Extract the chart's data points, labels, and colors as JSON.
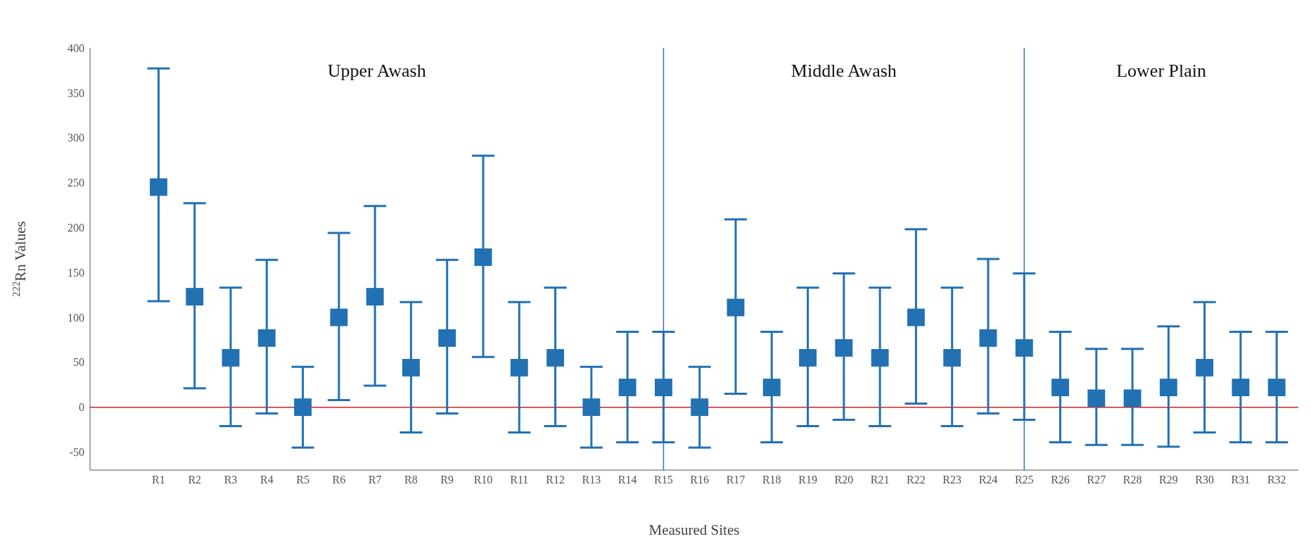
{
  "chart_data": {
    "type": "scatter",
    "xlabel": "Measured Sites",
    "ylabel": "$^{222}$Rn Values",
    "categories": [
      "R1",
      "R2",
      "R3",
      "R4",
      "R5",
      "R6",
      "R7",
      "R8",
      "R9",
      "R10",
      "R11",
      "R12",
      "R13",
      "R14",
      "R15",
      "R16",
      "R17",
      "R18",
      "R19",
      "R20",
      "R21",
      "R22",
      "R23",
      "R24",
      "R25",
      "R26",
      "R27",
      "R28",
      "R29",
      "R30",
      "R31",
      "R32"
    ],
    "series": [
      {
        "color": "#2271b3",
        "values": [
          245,
          123,
          55,
          77,
          0,
          100,
          123,
          44,
          77,
          167,
          44,
          55,
          0,
          22,
          22,
          0,
          111,
          22,
          55,
          66,
          55,
          100,
          55,
          77,
          66,
          22,
          10,
          10,
          22,
          44,
          22,
          22
        ],
        "errors": [
          [
            118,
            377
          ],
          [
            21,
            227
          ],
          [
            -21,
            133
          ],
          [
            -7,
            164
          ],
          [
            -45,
            45
          ],
          [
            8,
            194
          ],
          [
            24,
            224
          ],
          [
            -28,
            117
          ],
          [
            -7,
            164
          ],
          [
            56,
            280
          ],
          [
            -28,
            117
          ],
          [
            -21,
            133
          ],
          [
            -45,
            45
          ],
          [
            -39,
            84
          ],
          [
            -39,
            84
          ],
          [
            -45,
            45
          ],
          [
            15,
            209
          ],
          [
            -39,
            84
          ],
          [
            -21,
            133
          ],
          [
            -14,
            149
          ],
          [
            -21,
            133
          ],
          [
            4,
            198
          ],
          [
            -21,
            133
          ],
          [
            -7,
            165
          ],
          [
            -14,
            149
          ],
          [
            -39,
            84
          ],
          [
            -42,
            65
          ],
          [
            -42,
            65
          ],
          [
            -44,
            90
          ],
          [
            -28,
            117
          ],
          [
            -39,
            84
          ],
          [
            -39,
            84
          ]
        ]
      }
    ],
    "ylim": [
      -70,
      400
    ],
    "yticks": [
      -50,
      0,
      50,
      100,
      150,
      200,
      250,
      300,
      350,
      400
    ],
    "marker": "square",
    "grid": false,
    "legend": false,
    "ref_lines": [
      {
        "axis": "y",
        "value": 0,
        "color": "#cc2222"
      },
      {
        "axis": "x",
        "value": "R15",
        "color": "#3a6fc4"
      },
      {
        "axis": "x",
        "value": "R25",
        "color": "#3a6fc4"
      }
    ],
    "annotations": [
      "Upper Awash",
      "Middle Awash",
      "Lower Plain"
    ]
  }
}
